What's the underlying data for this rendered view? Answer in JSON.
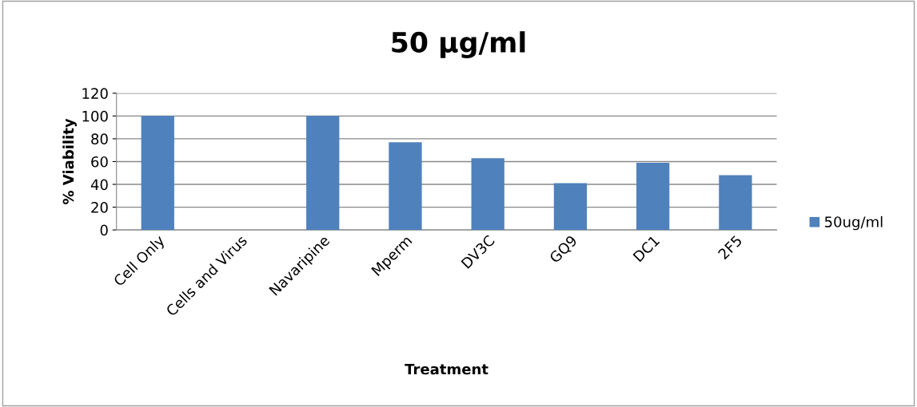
{
  "chart_data": {
    "type": "bar",
    "title": "50 µg/ml",
    "xlabel": "Treatment",
    "ylabel": "% Viability",
    "categories": [
      "Cell Only",
      "Cells and Virus",
      "Navaripine",
      "Mperm",
      "DV3C",
      "GQ9",
      "DC1",
      "2F5"
    ],
    "series": [
      {
        "name": "50ug/ml",
        "color": "#4f81bd",
        "values": [
          100,
          0,
          100,
          77,
          63,
          41,
          59,
          48
        ]
      }
    ],
    "ylim": [
      0,
      120
    ],
    "yticks": [
      0,
      20,
      40,
      60,
      80,
      100,
      120
    ],
    "grid": "y",
    "legend": "right"
  }
}
